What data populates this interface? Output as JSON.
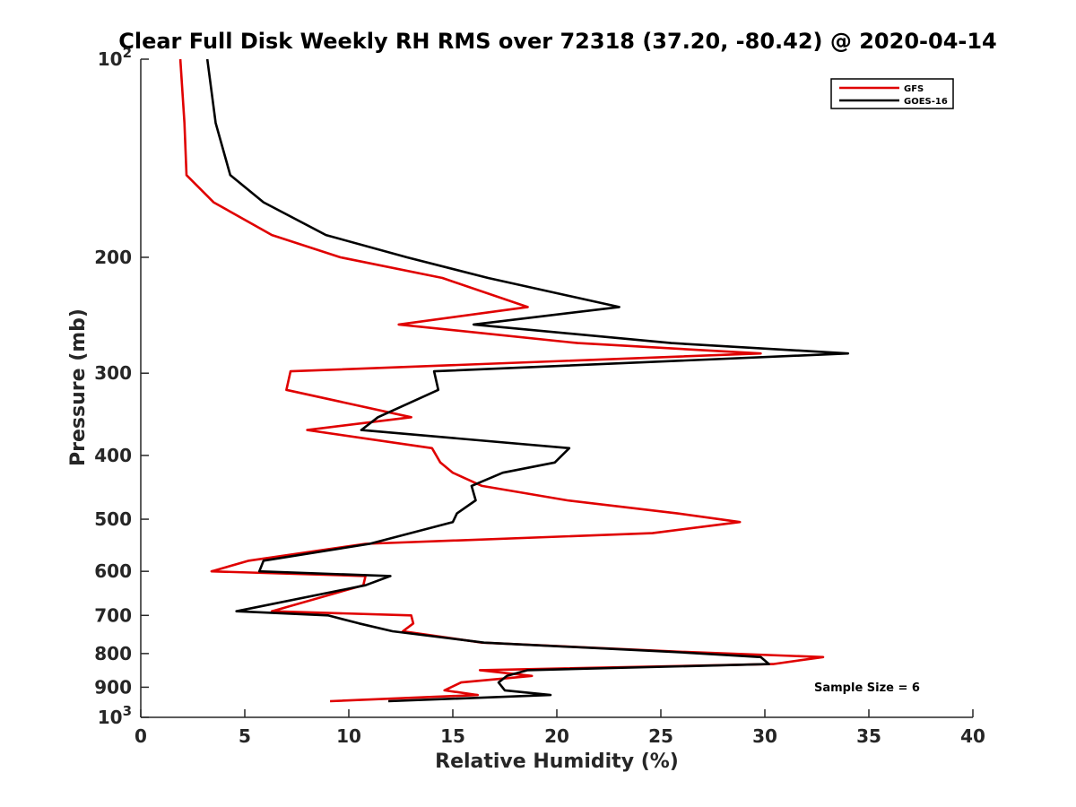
{
  "chart_data": {
    "type": "line",
    "title": "Clear Full Disk Weekly RH RMS over 72318 (37.20, -80.42) @ 2020-04-14",
    "xlabel": "Relative Humidity (%)",
    "ylabel": "Pressure (mb)",
    "xlim": [
      0,
      40
    ],
    "ylim": [
      100,
      1000
    ],
    "y_scale": "log",
    "y_reversed": true,
    "x_ticks": [
      "0",
      "5",
      "10",
      "15",
      "20",
      "25",
      "30",
      "35",
      "40"
    ],
    "y_ticks": [
      {
        "value": 100,
        "base": "10",
        "exp": "2"
      },
      {
        "value": 200,
        "label": "200"
      },
      {
        "value": 300,
        "label": "300"
      },
      {
        "value": 400,
        "label": "400"
      },
      {
        "value": 500,
        "label": "500"
      },
      {
        "value": 600,
        "label": "600"
      },
      {
        "value": 700,
        "label": "700"
      },
      {
        "value": 800,
        "label": "800"
      },
      {
        "value": 900,
        "label": "900"
      },
      {
        "value": 1000,
        "base": "10",
        "exp": "3"
      }
    ],
    "legend_position": "top-right",
    "annotation": "Sample Size = 6",
    "series": [
      {
        "name": "GFS",
        "color": "#e00000",
        "points": [
          [
            1.9,
            100
          ],
          [
            2.1,
            125
          ],
          [
            2.2,
            150
          ],
          [
            3.5,
            165
          ],
          [
            6.3,
            185
          ],
          [
            9.6,
            200
          ],
          [
            14.5,
            215
          ],
          [
            18.6,
            238
          ],
          [
            12.4,
            253
          ],
          [
            21,
            270
          ],
          [
            29.8,
            280
          ],
          [
            7.2,
            298
          ],
          [
            7.0,
            318
          ],
          [
            13,
            350
          ],
          [
            8.0,
            366
          ],
          [
            14,
            390
          ],
          [
            14.4,
            410
          ],
          [
            15.0,
            425
          ],
          [
            16.4,
            445
          ],
          [
            20.5,
            468
          ],
          [
            25.8,
            490
          ],
          [
            28.8,
            505
          ],
          [
            24.6,
            525
          ],
          [
            10.8,
            545
          ],
          [
            5.2,
            578
          ],
          [
            3.4,
            600
          ],
          [
            10.8,
            610
          ],
          [
            10.7,
            630
          ],
          [
            6.3,
            690
          ],
          [
            13.0,
            700
          ],
          [
            13.1,
            720
          ],
          [
            12.6,
            740
          ],
          [
            16.4,
            770
          ],
          [
            26,
            795
          ],
          [
            32.8,
            810
          ],
          [
            30.4,
            830
          ],
          [
            16.3,
            848
          ],
          [
            18.8,
            865
          ],
          [
            15.4,
            885
          ],
          [
            14.6,
            910
          ],
          [
            16.2,
            925
          ],
          [
            9.1,
            945
          ]
        ]
      },
      {
        "name": "GOES-16",
        "color": "#000000",
        "points": [
          [
            3.2,
            100
          ],
          [
            3.6,
            125
          ],
          [
            4.3,
            150
          ],
          [
            5.9,
            165
          ],
          [
            8.9,
            185
          ],
          [
            12.8,
            200
          ],
          [
            16.7,
            215
          ],
          [
            23.0,
            238
          ],
          [
            16.0,
            253
          ],
          [
            25.5,
            270
          ],
          [
            34.0,
            280
          ],
          [
            14.1,
            298
          ],
          [
            14.3,
            318
          ],
          [
            11.4,
            350
          ],
          [
            10.6,
            366
          ],
          [
            20.6,
            390
          ],
          [
            19.9,
            410
          ],
          [
            17.4,
            425
          ],
          [
            15.9,
            445
          ],
          [
            16.1,
            468
          ],
          [
            15.2,
            490
          ],
          [
            15.0,
            505
          ],
          [
            11.0,
            545
          ],
          [
            5.9,
            578
          ],
          [
            5.7,
            600
          ],
          [
            12.0,
            610
          ],
          [
            10.8,
            630
          ],
          [
            4.6,
            690
          ],
          [
            9.0,
            700
          ],
          [
            10.5,
            720
          ],
          [
            12.1,
            740
          ],
          [
            16.5,
            770
          ],
          [
            25.5,
            795
          ],
          [
            29.8,
            810
          ],
          [
            30.2,
            830
          ],
          [
            18.6,
            848
          ],
          [
            17.6,
            865
          ],
          [
            17.2,
            885
          ],
          [
            17.5,
            910
          ],
          [
            19.7,
            925
          ],
          [
            11.9,
            945
          ]
        ]
      }
    ]
  }
}
